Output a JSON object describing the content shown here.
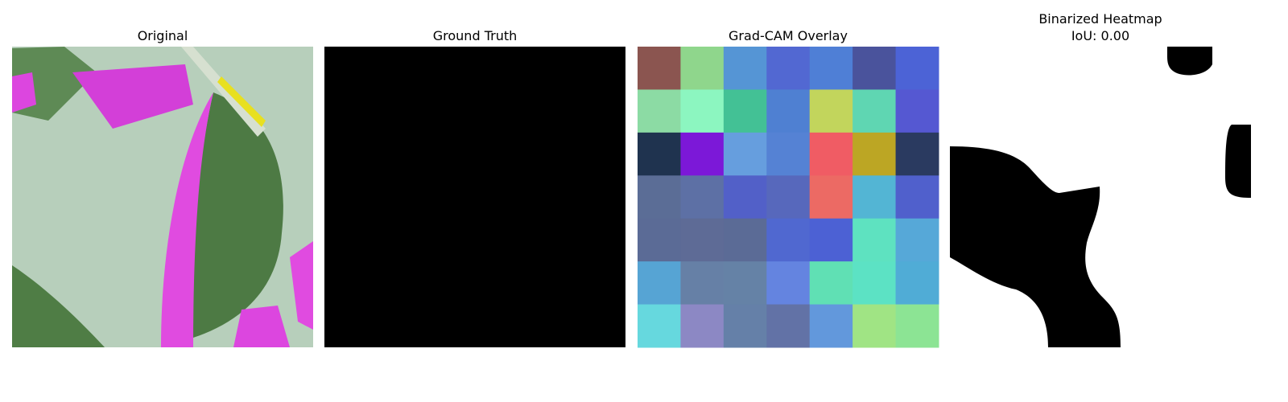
{
  "panels": [
    {
      "title": [
        "Original"
      ]
    },
    {
      "title": [
        "Ground Truth"
      ]
    },
    {
      "title": [
        "Grad-CAM Overlay"
      ],
      "grid_colors": [
        [
          "#8b5550",
          "#8fd68c",
          "#5595d5",
          "#5268d2",
          "#4f7fd6",
          "#4a539c",
          "#4c63d6"
        ],
        [
          "#8cdba4",
          "#8cf6c0",
          "#43c195",
          "#4f80d2",
          "#c2d55c",
          "#5fd6b2",
          "#5558d2"
        ],
        [
          "#1f334f",
          "#7c18d8",
          "#669ede",
          "#5582d4",
          "#f05c64",
          "#bca624",
          "#2a3a60"
        ],
        [
          "#5b6d96",
          "#5d70a5",
          "#5260c8",
          "#5768bc",
          "#ec6a64",
          "#53b5d4",
          "#5060cc"
        ],
        [
          "#5b6b96",
          "#5e6b96",
          "#5b6b96",
          "#5068d0",
          "#4c61d4",
          "#5ee2c0",
          "#56a8d8"
        ],
        [
          "#56a4d4",
          "#6680a6",
          "#6582a6",
          "#6484e0",
          "#60e0b4",
          "#5ce2c4",
          "#50acd6"
        ],
        [
          "#66d8de",
          "#8c88c4",
          "#6580a8",
          "#6272a6",
          "#6298dc",
          "#a0e484",
          "#8ce494"
        ]
      ]
    },
    {
      "title": [
        "Binarized Heatmap",
        "IoU: 0.00"
      ]
    }
  ]
}
